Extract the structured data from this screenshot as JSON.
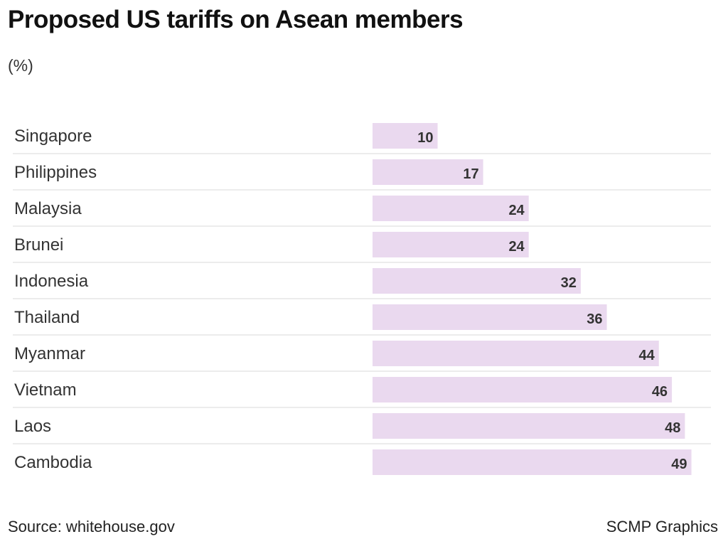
{
  "title": "Proposed US tariffs on Asean members",
  "subtitle": "(%)",
  "source": "Source: whitehouse.gov",
  "credit": "SCMP Graphics",
  "colors": {
    "bar": "#ead9ef",
    "separator": "#e6e6e6",
    "text": "#333333"
  },
  "chart_data": {
    "type": "bar",
    "orientation": "horizontal",
    "categories": [
      "Singapore",
      "Philippines",
      "Malaysia",
      "Brunei",
      "Indonesia",
      "Thailand",
      "Myanmar",
      "Vietnam",
      "Laos",
      "Cambodia"
    ],
    "values": [
      10,
      17,
      24,
      24,
      32,
      36,
      44,
      46,
      48,
      49
    ],
    "value_labels": [
      "10",
      "17",
      "24",
      "24",
      "32",
      "36",
      "44",
      "46",
      "48",
      "49"
    ],
    "title": "Proposed US tariffs on Asean members",
    "subtitle": "(%)",
    "xlim": [
      0,
      52
    ],
    "grid": false,
    "legend": "none"
  }
}
